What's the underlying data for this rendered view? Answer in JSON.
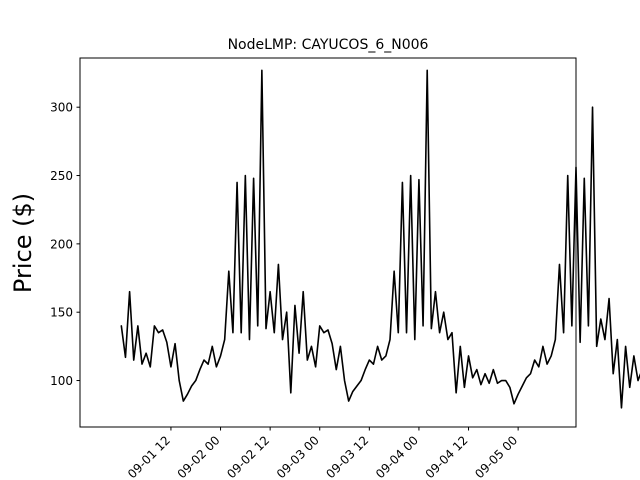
{
  "chart_data": {
    "type": "line",
    "title": "NodeLMP: CAYUCOS_6_N006",
    "xlabel": "",
    "ylabel": "Price ($)",
    "x_start": "2021-09-01 00:00",
    "x_step_hours": 1,
    "xlim": [
      "2021-08-31 14:00",
      "2021-09-05 14:00"
    ],
    "ylim": [
      66,
      336
    ],
    "yticks": [
      100,
      150,
      200,
      250,
      300
    ],
    "xticks": [
      {
        "t": "2021-09-01 12:00",
        "label": "09-01 12"
      },
      {
        "t": "2021-09-02 00:00",
        "label": "09-02 00"
      },
      {
        "t": "2021-09-02 12:00",
        "label": "09-02 12"
      },
      {
        "t": "2021-09-03 00:00",
        "label": "09-03 00"
      },
      {
        "t": "2021-09-03 12:00",
        "label": "09-03 12"
      },
      {
        "t": "2021-09-04 00:00",
        "label": "09-04 00"
      },
      {
        "t": "2021-09-04 12:00",
        "label": "09-04 12"
      },
      {
        "t": "2021-09-05 00:00",
        "label": "09-05 00"
      }
    ],
    "grid": false,
    "line_color": "#000000",
    "series": [
      {
        "values": [
          140,
          117,
          165,
          115,
          140,
          112,
          120,
          110,
          140,
          135,
          137,
          128,
          110,
          127,
          100,
          85,
          90,
          96,
          100,
          108,
          115,
          112,
          125,
          110,
          118,
          130,
          180,
          135,
          245,
          135,
          250,
          130,
          248,
          140,
          327,
          138,
          165,
          135,
          185,
          130,
          150,
          91,
          155,
          120,
          165,
          115,
          125,
          110,
          140,
          135,
          137,
          127,
          108,
          125,
          100,
          85,
          92,
          96,
          100,
          108,
          115,
          112,
          125,
          115,
          118,
          130,
          180,
          135,
          245,
          135,
          250,
          130,
          247,
          140,
          327,
          138,
          165,
          135,
          150,
          130,
          135,
          91,
          125,
          95,
          118,
          102,
          108,
          97,
          105,
          98,
          108,
          98,
          100,
          100,
          95,
          83,
          90,
          96,
          102,
          105,
          115,
          110,
          125,
          112,
          118,
          130,
          185,
          135,
          250,
          140,
          256,
          128,
          248,
          140,
          300,
          125,
          145,
          130,
          160,
          105,
          130,
          80,
          125,
          95,
          118,
          100,
          108,
          98,
          110,
          98,
          105,
          96,
          100,
          102,
          95,
          83,
          88,
          96,
          100,
          105,
          115,
          110,
          125,
          112,
          122,
          130,
          185,
          135,
          249,
          140,
          256,
          130,
          248,
          140,
          300,
          125,
          145,
          132,
          150,
          105,
          125,
          102,
          108,
          80,
          78
        ]
      }
    ]
  }
}
